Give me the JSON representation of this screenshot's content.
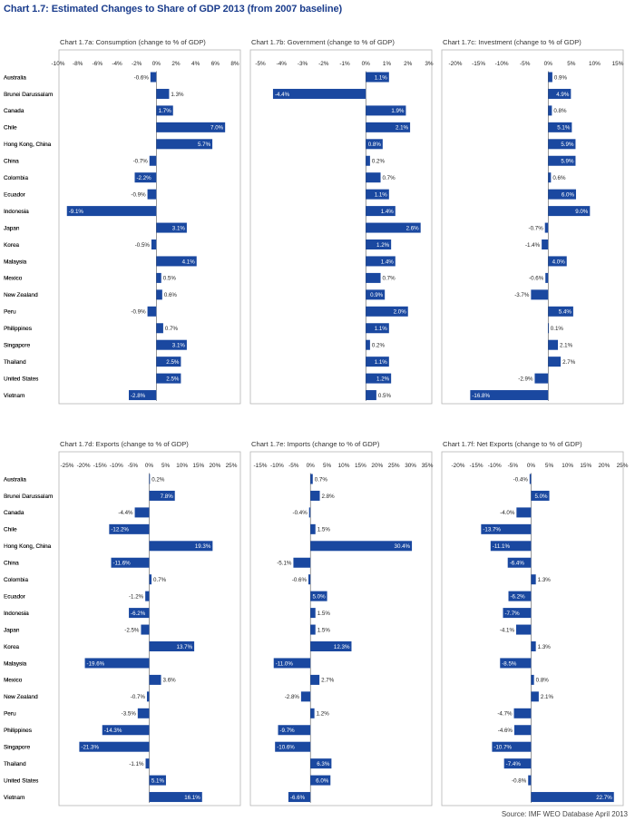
{
  "title": "Chart 1.7: Estimated Changes to Share of GDP 2013 (from 2007 baseline)",
  "source": "Source: IMF WEO Database April 2013",
  "colors": {
    "bar": "#1a48a0",
    "title": "#1a3c8c",
    "frame": "#b5b5b5",
    "text": "#222222"
  },
  "chart_data": [
    {
      "type": "bar",
      "orientation": "horizontal",
      "title": "Chart 1.7a: Consumption (change to % of GDP)",
      "categories": [
        "Australia",
        "Brunei Darussalam",
        "Canada",
        "Chile",
        "Hong Kong, China",
        "China",
        "Colombia",
        "Ecuador",
        "Indonesia",
        "Japan",
        "Korea",
        "Malaysia",
        "Mexico",
        "New Zealand",
        "Peru",
        "Philippines",
        "Singapore",
        "Thailand",
        "United States",
        "Vietnam"
      ],
      "values": [
        -0.6,
        1.3,
        1.7,
        7.0,
        5.7,
        -0.7,
        -2.2,
        -0.9,
        -9.1,
        3.1,
        -0.5,
        4.1,
        0.5,
        0.6,
        -0.9,
        0.7,
        3.1,
        2.5,
        2.5,
        -2.8
      ],
      "value_labels": [
        "-0.6%",
        "1.3%",
        "1.7%",
        "7.0%",
        "5.7%",
        "-0.7%",
        "-2.2%",
        "-0.9%",
        "-9.1%",
        "3.1%",
        "-0.5%",
        "4.1%",
        "0.5%",
        "0.6%",
        "-0.9%",
        "0.7%",
        "3.1%",
        "2.5%",
        "2.5%",
        "-2.8%"
      ],
      "xlim": [
        -10,
        8
      ],
      "ticks": [
        -10,
        -8,
        -6,
        -4,
        -2,
        0,
        2,
        4,
        6,
        8
      ],
      "tick_labels": [
        "-10%",
        "-8%",
        "-6%",
        "-4%",
        "-2%",
        "0%",
        "2%",
        "4%",
        "6%",
        "8%"
      ]
    },
    {
      "type": "bar",
      "orientation": "horizontal",
      "title": "Chart 1.7b: Government (change to % of GDP)",
      "categories": [
        "Australia",
        "Brunei Darussalam",
        "Canada",
        "Chile",
        "Hong Kong, China",
        "China",
        "Colombia",
        "Ecuador",
        "Indonesia",
        "Japan",
        "Korea",
        "Malaysia",
        "Mexico",
        "New Zealand",
        "Peru",
        "Philippines",
        "Singapore",
        "Thailand",
        "United States",
        "Vietnam"
      ],
      "values": [
        1.1,
        -4.4,
        1.9,
        2.1,
        0.8,
        0.2,
        0.7,
        1.1,
        1.4,
        2.6,
        1.2,
        1.4,
        0.7,
        0.9,
        2.0,
        1.1,
        0.2,
        1.1,
        1.2,
        0.5
      ],
      "value_labels": [
        "1.1%",
        "-4.4%",
        "1.9%",
        "2.1%",
        "0.8%",
        "0.2%",
        "0.7%",
        "1.1%",
        "1.4%",
        "2.6%",
        "1.2%",
        "1.4%",
        "0.7%",
        "0.9%",
        "2.0%",
        "1.1%",
        "0.2%",
        "1.1%",
        "1.2%",
        "0.5%"
      ],
      "xlim": [
        -5,
        3
      ],
      "ticks": [
        -5,
        -4,
        -3,
        -2,
        -1,
        0,
        1,
        2,
        3
      ],
      "tick_labels": [
        "-5%",
        "-4%",
        "-3%",
        "-2%",
        "-1%",
        "0%",
        "1%",
        "2%",
        "3%"
      ]
    },
    {
      "type": "bar",
      "orientation": "horizontal",
      "title": "Chart 1.7c: Investment (change to % of GDP)",
      "categories": [
        "Australia",
        "Brunei Darussalam",
        "Canada",
        "Chile",
        "Hong Kong, China",
        "China",
        "Colombia",
        "Ecuador",
        "Indonesia",
        "Japan",
        "Korea",
        "Malaysia",
        "Mexico",
        "New Zealand",
        "Peru",
        "Philippines",
        "Singapore",
        "Thailand",
        "United States",
        "Vietnam"
      ],
      "values": [
        0.9,
        4.9,
        0.8,
        5.1,
        5.9,
        5.9,
        0.6,
        6.0,
        9.0,
        -0.7,
        -1.4,
        4.0,
        -0.6,
        -3.7,
        5.4,
        0.1,
        2.1,
        2.7,
        -2.9,
        -16.8
      ],
      "value_labels": [
        "0.9%",
        "4.9%",
        "0.8%",
        "5.1%",
        "5.9%",
        "5.9%",
        "0.6%",
        "6.0%",
        "9.0%",
        "-0.7%",
        "-1.4%",
        "4.0%",
        "-0.6%",
        "-3.7%",
        "5.4%",
        "0.1%",
        "2.1%",
        "2.7%",
        "-2.9%",
        "-16.8%"
      ],
      "xlim": [
        -20,
        15
      ],
      "ticks": [
        -20,
        -15,
        -10,
        -5,
        0,
        5,
        10,
        15
      ],
      "tick_labels": [
        "-20%",
        "-15%",
        "-10%",
        "-5%",
        "0%",
        "5%",
        "10%",
        "15%"
      ]
    },
    {
      "type": "bar",
      "orientation": "horizontal",
      "title": "Chart 1.7d: Exports (change to % of GDP)",
      "categories": [
        "Australia",
        "Brunei Darussalam",
        "Canada",
        "Chile",
        "Hong Kong, China",
        "China",
        "Colombia",
        "Ecuador",
        "Indonesia",
        "Japan",
        "Korea",
        "Malaysia",
        "Mexico",
        "New Zealand",
        "Peru",
        "Philippines",
        "Singapore",
        "Thailand",
        "United States",
        "Vietnam"
      ],
      "values": [
        0.2,
        7.8,
        -4.4,
        -12.2,
        19.3,
        -11.6,
        0.7,
        -1.2,
        -6.2,
        -2.5,
        13.7,
        -19.6,
        3.6,
        -0.7,
        -3.5,
        -14.3,
        -21.3,
        -1.1,
        5.1,
        16.1
      ],
      "value_labels": [
        "0.2%",
        "7.8%",
        "-4.4%",
        "-12.2%",
        "19.3%",
        "-11.6%",
        "0.7%",
        "-1.2%",
        "-6.2%",
        "-2.5%",
        "13.7%",
        "-19.6%",
        "3.6%",
        "-0.7%",
        "-3.5%",
        "-14.3%",
        "-21.3%",
        "-1.1%",
        "5.1%",
        "16.1%"
      ],
      "xlim": [
        -25,
        25
      ],
      "ticks": [
        -25,
        -20,
        -15,
        -10,
        -5,
        0,
        5,
        10,
        15,
        20,
        25
      ],
      "tick_labels": [
        "-25%",
        "-20%",
        "-15%",
        "-10%",
        "-5%",
        "0%",
        "5%",
        "10%",
        "15%",
        "20%",
        "25%"
      ]
    },
    {
      "type": "bar",
      "orientation": "horizontal",
      "title": "Chart 1.7e: Imports (change to % of GDP)",
      "categories": [
        "Australia",
        "Brunei Darussalam",
        "Canada",
        "Chile",
        "Hong Kong, China",
        "China",
        "Colombia",
        "Ecuador",
        "Indonesia",
        "Japan",
        "Korea",
        "Malaysia",
        "Mexico",
        "New Zealand",
        "Peru",
        "Philippines",
        "Singapore",
        "Thailand",
        "United States",
        "Vietnam"
      ],
      "values": [
        0.7,
        2.8,
        -0.4,
        1.5,
        30.4,
        -5.1,
        -0.6,
        5.0,
        1.5,
        1.5,
        12.3,
        -11.0,
        2.7,
        -2.8,
        1.2,
        -9.7,
        -10.6,
        6.3,
        6.0,
        -6.6
      ],
      "value_labels": [
        "0.7%",
        "2.8%",
        "-0.4%",
        "1.5%",
        "30.4%",
        "-5.1%",
        "-0.6%",
        "5.0%",
        "1.5%",
        "1.5%",
        "12.3%",
        "-11.0%",
        "2.7%",
        "-2.8%",
        "1.2%",
        "-9.7%",
        "-10.6%",
        "6.3%",
        "6.0%",
        "-6.6%"
      ],
      "xlim": [
        -15,
        35
      ],
      "ticks": [
        -15,
        -10,
        -5,
        0,
        5,
        10,
        15,
        20,
        25,
        30,
        35
      ],
      "tick_labels": [
        "-15%",
        "-10%",
        "-5%",
        "0%",
        "5%",
        "10%",
        "15%",
        "20%",
        "25%",
        "30%",
        "35%"
      ]
    },
    {
      "type": "bar",
      "orientation": "horizontal",
      "title": "Chart 1.7f: Net Exports (change to % of GDP)",
      "categories": [
        "Australia",
        "Brunei Darussalam",
        "Canada",
        "Chile",
        "Hong Kong, China",
        "China",
        "Colombia",
        "Ecuador",
        "Indonesia",
        "Japan",
        "Korea",
        "Malaysia",
        "Mexico",
        "New Zealand",
        "Peru",
        "Philippines",
        "Singapore",
        "Thailand",
        "United States",
        "Vietnam"
      ],
      "values": [
        -0.4,
        5.0,
        -4.0,
        -13.7,
        -11.1,
        -6.4,
        1.3,
        -6.2,
        -7.7,
        -4.1,
        1.3,
        -8.5,
        0.8,
        2.1,
        -4.7,
        -4.6,
        -10.7,
        -7.4,
        -0.8,
        22.7
      ],
      "value_labels": [
        "-0.4%",
        "5.0%",
        "-4.0%",
        "-13.7%",
        "-11.1%",
        "-6.4%",
        "1.3%",
        "-6.2%",
        "-7.7%",
        "-4.1%",
        "1.3%",
        "-8.5%",
        "0.8%",
        "2.1%",
        "-4.7%",
        "-4.6%",
        "-10.7%",
        "-7.4%",
        "-0.8%",
        "22.7%"
      ],
      "xlim": [
        -20,
        25
      ],
      "ticks": [
        -20,
        -15,
        -10,
        -5,
        0,
        5,
        10,
        15,
        20,
        25
      ],
      "tick_labels": [
        "-20%",
        "-15%",
        "-10%",
        "-5%",
        "0%",
        "5%",
        "10%",
        "15%",
        "20%",
        "25%"
      ]
    }
  ]
}
